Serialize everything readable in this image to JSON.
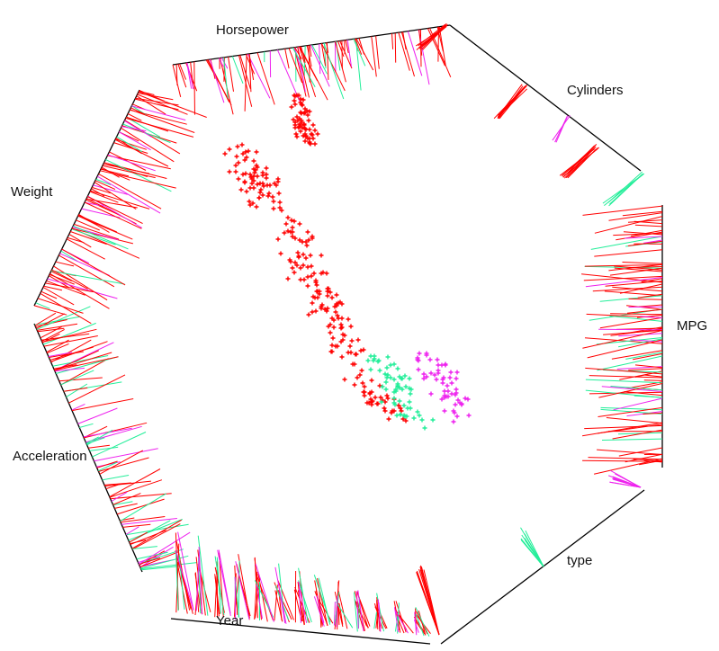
{
  "chart_data": {
    "type": "scatter",
    "title": "",
    "axes": [
      "Horsepower",
      "Cylinders",
      "MPG",
      "type",
      "Year",
      "Acceleration",
      "Weight"
    ],
    "series_colors": [
      "#ff0000",
      "#22ee99",
      "#ee22ee"
    ],
    "grid": false,
    "legend": "none"
  }
}
